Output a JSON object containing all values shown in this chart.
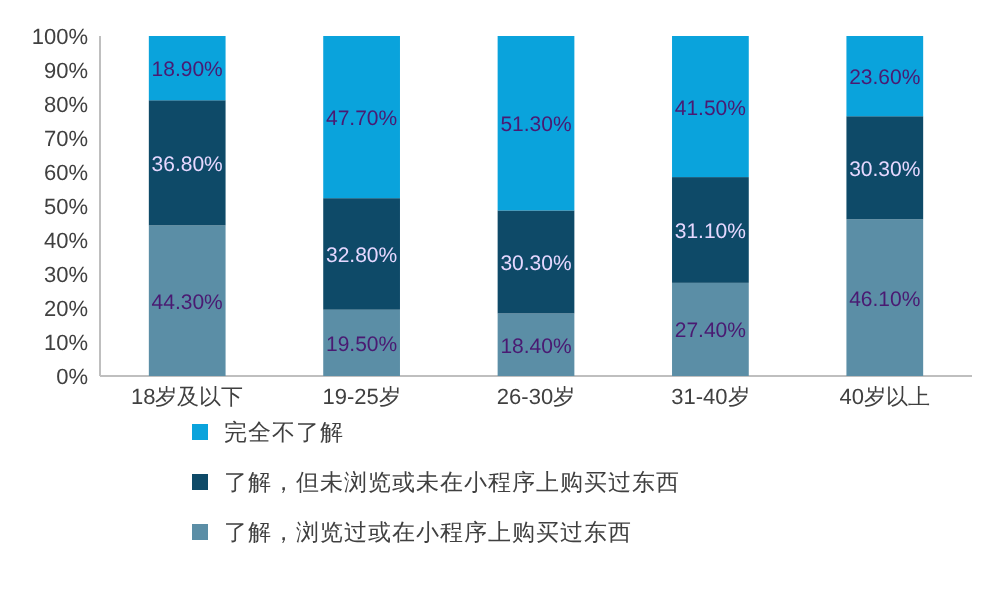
{
  "chart_data": {
    "type": "bar",
    "stacked": true,
    "categories": [
      "18岁及以下",
      "19-25岁",
      "26-30岁",
      "31-40岁",
      "40岁以上"
    ],
    "series": [
      {
        "name": "了解，浏览过或在小程序上购买过东西",
        "color": "#5b8ea6",
        "values": [
          44.3,
          19.5,
          18.4,
          27.4,
          46.1
        ],
        "value_labels": [
          "44.30%",
          "19.50%",
          "18.40%",
          "27.40%",
          "46.10%"
        ]
      },
      {
        "name": "了解，但未浏览或未在小程序上购买过东西",
        "color": "#0e4a68",
        "values": [
          36.8,
          32.8,
          30.3,
          31.1,
          30.3
        ],
        "value_labels": [
          "36.80%",
          "32.80%",
          "30.30%",
          "31.10%",
          "30.30%"
        ]
      },
      {
        "name": "完全不了解",
        "color": "#0aa3dc",
        "values": [
          18.9,
          47.7,
          51.3,
          41.5,
          23.6
        ],
        "value_labels": [
          "18.90%",
          "47.70%",
          "51.30%",
          "41.50%",
          "23.60%"
        ]
      }
    ],
    "ylim": [
      0,
      100
    ],
    "yticks": [
      {
        "value": 0,
        "label": "0%"
      },
      {
        "value": 10,
        "label": "10%"
      },
      {
        "value": 20,
        "label": "20%"
      },
      {
        "value": 30,
        "label": "30%"
      },
      {
        "value": 40,
        "label": "40%"
      },
      {
        "value": 50,
        "label": "50%"
      },
      {
        "value": 60,
        "label": "60%"
      },
      {
        "value": 70,
        "label": "70%"
      },
      {
        "value": 80,
        "label": "80%"
      },
      {
        "value": 90,
        "label": "90%"
      },
      {
        "value": 100,
        "label": "100%"
      }
    ],
    "legend": "bottom",
    "grid": false
  }
}
